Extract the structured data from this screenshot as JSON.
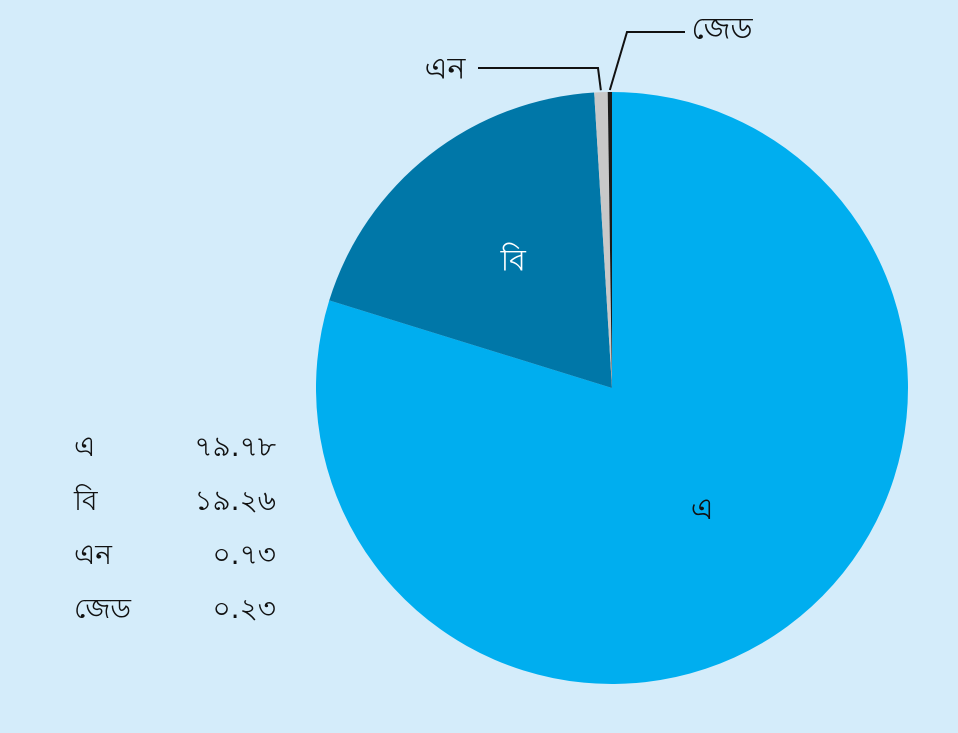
{
  "chart_data": {
    "type": "pie",
    "slices": [
      {
        "name": "এ",
        "value": 79.78,
        "value_label": "৭৯.৭৮",
        "color": "#00aeef",
        "label_color": "#111111"
      },
      {
        "name": "বি",
        "value": 19.26,
        "value_label": "১৯.২৬",
        "color": "#0077a8",
        "label_color": "#ffffff"
      },
      {
        "name": "এন",
        "value": 0.73,
        "value_label": "০.৭৩",
        "color": "#c8c8c8",
        "label_color": "#111111"
      },
      {
        "name": "জেড",
        "value": 0.23,
        "value_label": "০.২৩",
        "color": "#1a1a1a",
        "label_color": "#111111"
      }
    ],
    "start_angle": "12 o'clock",
    "direction": "clockwise",
    "legend_placement": "bottom-left"
  }
}
